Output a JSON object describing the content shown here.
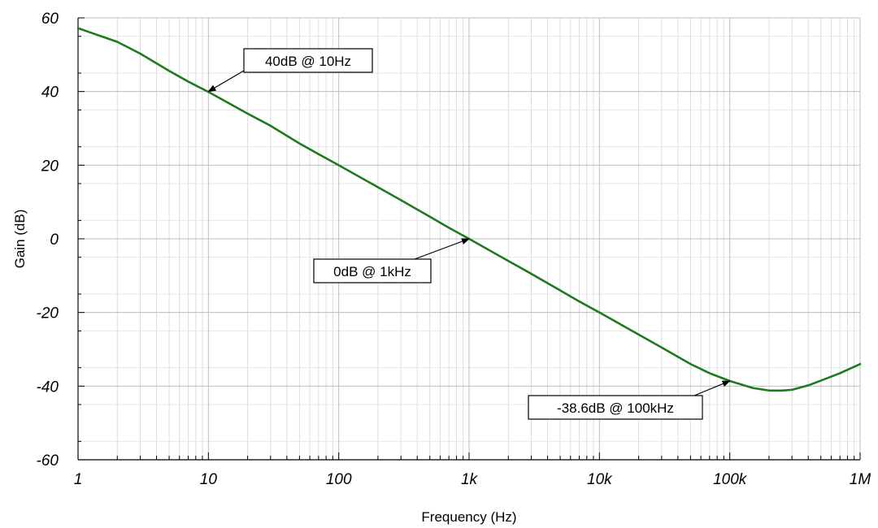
{
  "chart_data": {
    "type": "line",
    "xscale": "log",
    "xlim": [
      1,
      1000000
    ],
    "ylim": [
      -60,
      60
    ],
    "xlabel": "Frequency (Hz)",
    "ylabel": "Gain (dB)",
    "xticks": [
      {
        "value": 1,
        "label": "1"
      },
      {
        "value": 10,
        "label": "10"
      },
      {
        "value": 100,
        "label": "100"
      },
      {
        "value": 1000,
        "label": "1k"
      },
      {
        "value": 10000,
        "label": "10k"
      },
      {
        "value": 100000,
        "label": "100k"
      },
      {
        "value": 1000000,
        "label": "1M"
      }
    ],
    "yticks": [
      {
        "value": 60,
        "label": "60"
      },
      {
        "value": 40,
        "label": "40"
      },
      {
        "value": 20,
        "label": "20"
      },
      {
        "value": 0,
        "label": "0"
      },
      {
        "value": -20,
        "label": "-20"
      },
      {
        "value": -40,
        "label": "-40"
      },
      {
        "value": -60,
        "label": "-60"
      }
    ],
    "grid": true,
    "series": [
      {
        "color": "#1f7a1f",
        "x": [
          1,
          2,
          3,
          5,
          7,
          10,
          20,
          30,
          50,
          70,
          100,
          200,
          300,
          500,
          700,
          1000,
          2000,
          3000,
          5000,
          7000,
          10000,
          20000,
          30000,
          50000,
          70000,
          100000,
          150000,
          200000,
          250000,
          300000,
          400000,
          500000,
          700000,
          1000000
        ],
        "y": [
          57.2,
          53.5,
          50.3,
          45.6,
          42.7,
          39.9,
          34.0,
          30.7,
          25.9,
          23.0,
          20.0,
          14.0,
          10.5,
          6.0,
          3.0,
          0.0,
          -6.0,
          -9.5,
          -14.0,
          -17.0,
          -20.0,
          -26.0,
          -29.5,
          -34.0,
          -36.5,
          -38.6,
          -40.5,
          -41.2,
          -41.2,
          -41.0,
          -39.8,
          -38.5,
          -36.5,
          -34.0
        ]
      }
    ],
    "annotations": [
      {
        "text": "40dB @ 10Hz",
        "x": 10,
        "y": 40
      },
      {
        "text": "0dB @ 1kHz",
        "x": 1000,
        "y": 0
      },
      {
        "text": "-38.6dB @ 100kHz",
        "x": 100000,
        "y": -38.6
      }
    ]
  }
}
